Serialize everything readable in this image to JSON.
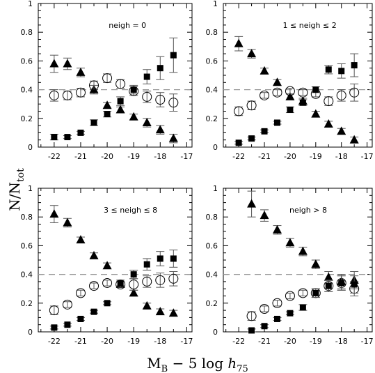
{
  "figure": {
    "ylabel_main": "N/N",
    "ylabel_sub": "tot",
    "xlabel_prefix": "M",
    "xlabel_prefix_sub": "B",
    "xlabel_mid": " − 5 log ",
    "xlabel_h": "h",
    "xlabel_h_sub": "75"
  },
  "chart_data": [
    {
      "type": "scatter",
      "panel_label": "neigh = 0",
      "x": [
        -22,
        -21.5,
        -21,
        -20.5,
        -20,
        -19.5,
        -19,
        -18.5,
        -18,
        -17.5
      ],
      "xlim": [
        -22.6,
        -16.8
      ],
      "ylim": [
        0,
        1
      ],
      "xticks": [
        -22,
        -21,
        -20,
        -19,
        -18,
        -17
      ],
      "yticks": [
        0,
        0.2,
        0.4,
        0.6,
        0.8,
        1
      ],
      "reference_line": 0.4,
      "series": [
        {
          "marker": "triangle",
          "values": [
            0.58,
            0.58,
            0.52,
            0.4,
            0.29,
            0.26,
            0.21,
            0.17,
            0.12,
            0.06
          ],
          "errors": [
            0.06,
            0.04,
            0.03,
            0.03,
            0.02,
            0.02,
            0.02,
            0.03,
            0.03,
            0.03
          ]
        },
        {
          "marker": "open-circle",
          "values": [
            0.36,
            0.36,
            0.38,
            0.43,
            0.48,
            0.44,
            0.39,
            0.35,
            0.33,
            0.31
          ],
          "errors": [
            0.04,
            0.03,
            0.03,
            0.03,
            0.03,
            0.03,
            0.03,
            0.04,
            0.05,
            0.06
          ]
        },
        {
          "marker": "filled-square",
          "values": [
            0.07,
            0.07,
            0.1,
            0.17,
            0.23,
            0.32,
            0.4,
            0.49,
            0.55,
            0.64
          ],
          "errors": [
            0.02,
            0.01,
            0.01,
            0.02,
            0.02,
            0.03,
            0.03,
            0.05,
            0.08,
            0.12
          ]
        }
      ]
    },
    {
      "type": "scatter",
      "panel_label": "1 ≤  neigh ≤ 2",
      "x": [
        -22,
        -21.5,
        -21,
        -20.5,
        -20,
        -19.5,
        -19,
        -18.5,
        -18,
        -17.5
      ],
      "xlim": [
        -22.6,
        -16.8
      ],
      "ylim": [
        0,
        1
      ],
      "xticks": [
        -22,
        -21,
        -20,
        -19,
        -18,
        -17
      ],
      "yticks": [
        0,
        0.2,
        0.4,
        0.6,
        0.8,
        1
      ],
      "reference_line": 0.4,
      "series": [
        {
          "marker": "triangle",
          "values": [
            0.72,
            0.65,
            0.53,
            0.45,
            0.35,
            0.32,
            0.23,
            0.16,
            0.11,
            0.05
          ],
          "errors": [
            0.05,
            0.03,
            0.02,
            0.02,
            0.02,
            0.02,
            0.02,
            0.02,
            0.02,
            0.02
          ]
        },
        {
          "marker": "open-circle",
          "values": [
            0.25,
            0.29,
            0.36,
            0.38,
            0.39,
            0.38,
            0.37,
            0.32,
            0.36,
            0.38
          ],
          "errors": [
            0.03,
            0.03,
            0.02,
            0.02,
            0.02,
            0.02,
            0.02,
            0.03,
            0.04,
            0.06
          ]
        },
        {
          "marker": "filled-square",
          "values": [
            0.03,
            0.06,
            0.11,
            0.17,
            0.26,
            0.31,
            0.4,
            0.54,
            0.53,
            0.57
          ],
          "errors": [
            0.01,
            0.01,
            0.01,
            0.01,
            0.02,
            0.02,
            0.02,
            0.03,
            0.05,
            0.08
          ]
        }
      ]
    },
    {
      "type": "scatter",
      "panel_label": "3 ≤  neigh ≤  8",
      "x": [
        -22,
        -21.5,
        -21,
        -20.5,
        -20,
        -19.5,
        -19,
        -18.5,
        -18,
        -17.5
      ],
      "xlim": [
        -22.6,
        -16.8
      ],
      "ylim": [
        0,
        1
      ],
      "xticks": [
        -22,
        -21,
        -20,
        -19,
        -18,
        -17
      ],
      "yticks": [
        0,
        0.2,
        0.4,
        0.6,
        0.8,
        1
      ],
      "reference_line": 0.4,
      "series": [
        {
          "marker": "triangle",
          "values": [
            0.82,
            0.76,
            0.64,
            0.53,
            0.46,
            0.33,
            0.27,
            0.18,
            0.14,
            0.13
          ],
          "errors": [
            0.06,
            0.03,
            0.02,
            0.02,
            0.02,
            0.02,
            0.02,
            0.02,
            0.02,
            0.02
          ]
        },
        {
          "marker": "open-circle",
          "values": [
            0.15,
            0.19,
            0.27,
            0.32,
            0.34,
            0.33,
            0.33,
            0.35,
            0.36,
            0.37
          ],
          "errors": [
            0.03,
            0.02,
            0.02,
            0.02,
            0.02,
            0.02,
            0.04,
            0.04,
            0.05,
            0.05
          ]
        },
        {
          "marker": "filled-square",
          "values": [
            0.03,
            0.05,
            0.09,
            0.14,
            0.2,
            0.34,
            0.4,
            0.47,
            0.51,
            0.51
          ],
          "errors": [
            0.01,
            0.01,
            0.01,
            0.01,
            0.01,
            0.02,
            0.03,
            0.04,
            0.05,
            0.06
          ]
        }
      ]
    },
    {
      "type": "scatter",
      "panel_label": "neigh > 8",
      "x": [
        -21.5,
        -21,
        -20.5,
        -20,
        -19.5,
        -19,
        -18.5,
        -18,
        -17.5
      ],
      "xlim": [
        -22.6,
        -16.8
      ],
      "ylim": [
        0,
        1
      ],
      "xticks": [
        -22,
        -21,
        -20,
        -19,
        -18,
        -17
      ],
      "yticks": [
        0,
        0.2,
        0.4,
        0.6,
        0.8,
        1
      ],
      "reference_line": 0.4,
      "series": [
        {
          "marker": "triangle",
          "values": [
            0.89,
            0.81,
            0.71,
            0.62,
            0.56,
            0.47,
            0.38,
            0.35,
            0.36
          ],
          "errors": [
            0.09,
            0.04,
            0.03,
            0.03,
            0.03,
            0.03,
            0.04,
            0.05,
            0.06
          ]
        },
        {
          "marker": "open-circle",
          "values": [
            0.11,
            0.16,
            0.2,
            0.25,
            0.27,
            0.27,
            0.32,
            0.34,
            0.3
          ],
          "errors": [
            0.03,
            0.02,
            0.02,
            0.02,
            0.02,
            0.03,
            0.04,
            0.05,
            0.05
          ]
        },
        {
          "marker": "filled-square",
          "values": [
            0.01,
            0.04,
            0.09,
            0.13,
            0.17,
            0.27,
            0.32,
            0.34,
            0.33
          ],
          "errors": [
            0.01,
            0.01,
            0.01,
            0.01,
            0.02,
            0.03,
            0.04,
            0.05,
            0.06
          ]
        }
      ]
    }
  ]
}
